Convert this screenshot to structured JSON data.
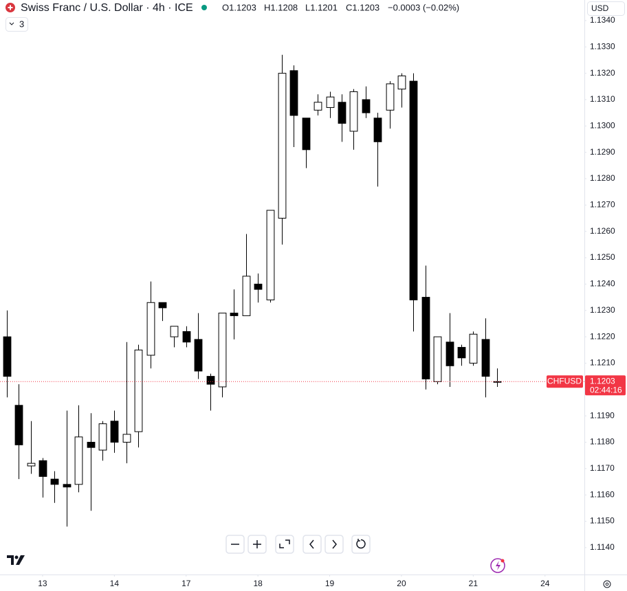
{
  "header": {
    "title": "Swiss Franc / U.S. Dollar · 4h · ICE",
    "open": "O1.1203",
    "high": "H1.1208",
    "low": "L1.1201",
    "close": "C1.1203",
    "change": "−0.0003 (−0.02%)",
    "indicators": "3",
    "currency": "USD"
  },
  "price_label": {
    "symbol": "CHFUSD",
    "price": "1.1203",
    "countdown": "02:44:16"
  },
  "chart_data": {
    "type": "candlestick",
    "up_color": "#ffffff",
    "down_color": "#000000",
    "edge_color": "#000000",
    "last_price_color": "#f23645",
    "xlim": [
      -0.56,
      48.29
    ],
    "xticks": [
      {
        "value": 3,
        "label": "13"
      },
      {
        "value": 9,
        "label": "14"
      },
      {
        "value": 15,
        "label": "17"
      },
      {
        "value": 21,
        "label": "18"
      },
      {
        "value": 27,
        "label": "19"
      },
      {
        "value": 33,
        "label": "20"
      },
      {
        "value": 39,
        "label": "21"
      },
      {
        "value": 45,
        "label": "24"
      }
    ],
    "ylim": [
      1.11298,
      1.13478
    ],
    "yticks": [
      {
        "value": 1.114,
        "label": "1.1140"
      },
      {
        "value": 1.115,
        "label": "1.1150"
      },
      {
        "value": 1.116,
        "label": "1.1160"
      },
      {
        "value": 1.117,
        "label": "1.1170"
      },
      {
        "value": 1.118,
        "label": "1.1180"
      },
      {
        "value": 1.119,
        "label": "1.1190"
      },
      {
        "value": 1.121,
        "label": "1.1210"
      },
      {
        "value": 1.122,
        "label": "1.1220"
      },
      {
        "value": 1.123,
        "label": "1.1230"
      },
      {
        "value": 1.124,
        "label": "1.1240"
      },
      {
        "value": 1.125,
        "label": "1.1250"
      },
      {
        "value": 1.126,
        "label": "1.1260"
      },
      {
        "value": 1.127,
        "label": "1.1270"
      },
      {
        "value": 1.128,
        "label": "1.1280"
      },
      {
        "value": 1.129,
        "label": "1.1290"
      },
      {
        "value": 1.13,
        "label": "1.1300"
      },
      {
        "value": 1.131,
        "label": "1.1310"
      },
      {
        "value": 1.132,
        "label": "1.1320"
      },
      {
        "value": 1.133,
        "label": "1.1330"
      },
      {
        "value": 1.134,
        "label": "1.1340"
      }
    ],
    "open": [
      1.122,
      1.1194,
      1.1171,
      1.1173,
      1.1166,
      1.1164,
      1.1164,
      1.118,
      1.1177,
      1.1188,
      1.118,
      1.1184,
      1.1213,
      1.1233,
      1.122,
      1.1222,
      1.1219,
      1.1205,
      1.1201,
      1.1229,
      1.1228,
      1.124,
      1.1234,
      1.1265,
      1.1321,
      1.1303,
      1.1306,
      1.1307,
      1.1309,
      1.1298,
      1.131,
      1.1303,
      1.1306,
      1.1314,
      1.1317,
      1.1235,
      1.1203,
      1.1218,
      1.1216,
      1.121,
      1.1219,
      1.1203
    ],
    "high": [
      1.123,
      1.1202,
      1.1188,
      1.1174,
      1.1169,
      1.1192,
      1.1194,
      1.1191,
      1.1188,
      1.1192,
      1.1218,
      1.1217,
      1.1241,
      1.1233,
      1.1224,
      1.1224,
      1.1229,
      1.1206,
      1.1229,
      1.1238,
      1.1259,
      1.1244,
      1.1268,
      1.1327,
      1.1323,
      1.1303,
      1.1312,
      1.1313,
      1.1312,
      1.1314,
      1.1315,
      1.1305,
      1.1317,
      1.132,
      1.132,
      1.1247,
      1.122,
      1.1229,
      1.1217,
      1.1222,
      1.1227,
      1.1208
    ],
    "low": [
      1.1197,
      1.1166,
      1.1168,
      1.1159,
      1.1157,
      1.1148,
      1.1161,
      1.1154,
      1.1173,
      1.1176,
      1.1172,
      1.1178,
      1.1208,
      1.1226,
      1.1216,
      1.1216,
      1.1204,
      1.1192,
      1.1197,
      1.1219,
      1.1228,
      1.1233,
      1.1233,
      1.1255,
      1.1292,
      1.1284,
      1.1304,
      1.1303,
      1.1294,
      1.1291,
      1.1303,
      1.1277,
      1.1299,
      1.1307,
      1.1222,
      1.12,
      1.1202,
      1.1201,
      1.1209,
      1.1209,
      1.1197,
      1.1201
    ],
    "close": [
      1.1205,
      1.1179,
      1.1172,
      1.1167,
      1.1164,
      1.1163,
      1.1182,
      1.1178,
      1.1187,
      1.118,
      1.1183,
      1.1215,
      1.1233,
      1.1231,
      1.1224,
      1.1218,
      1.1207,
      1.1202,
      1.1229,
      1.1228,
      1.1243,
      1.1238,
      1.1268,
      1.132,
      1.1304,
      1.1291,
      1.1309,
      1.1311,
      1.1301,
      1.1313,
      1.1305,
      1.1294,
      1.1316,
      1.1319,
      1.1234,
      1.1204,
      1.122,
      1.1209,
      1.1212,
      1.1221,
      1.1205,
      1.1203
    ]
  }
}
